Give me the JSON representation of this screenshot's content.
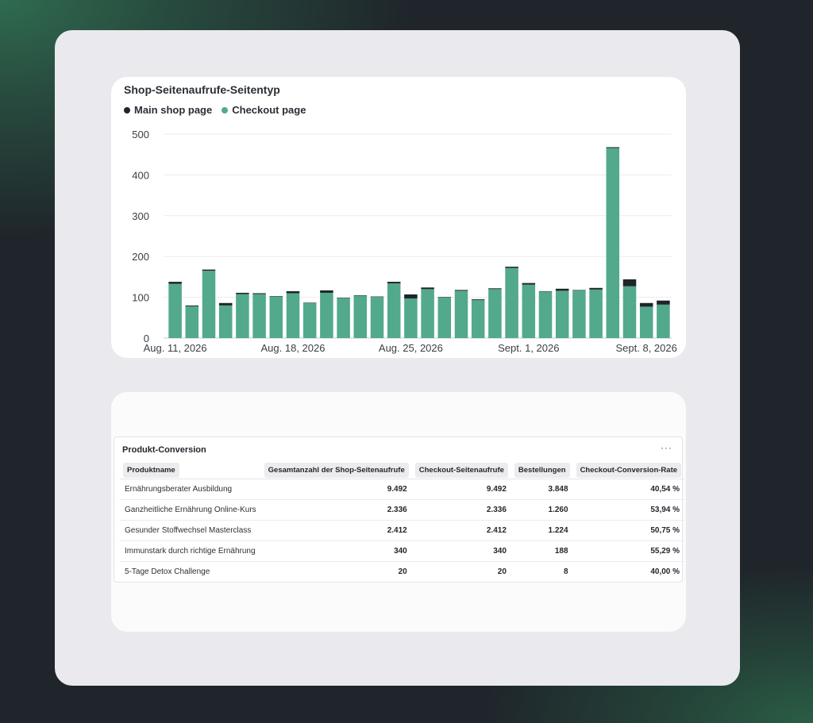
{
  "chart_card": {
    "title": "Shop-Seitenaufrufe-Seitentyp",
    "legend": [
      {
        "label": "Main shop page",
        "color": "#1f252b"
      },
      {
        "label": "Checkout page",
        "color": "#53a98b"
      }
    ]
  },
  "chart_data": {
    "type": "bar",
    "stacked": true,
    "title": "Shop-Seitenaufrufe-Seitentyp",
    "x_tick_labels": [
      "Aug. 11, 2026",
      "Aug. 18, 2026",
      "Aug. 25, 2026",
      "Sept. 1, 2026",
      "Sept. 8, 2026"
    ],
    "x_tick_indices": [
      0,
      7,
      14,
      21,
      28
    ],
    "ylim": [
      0,
      500
    ],
    "yticks": [
      0,
      100,
      200,
      300,
      400,
      500
    ],
    "grid": true,
    "legend_position": "top-left",
    "series": [
      {
        "name": "Checkout page",
        "color": "#53a98b",
        "values": [
          133,
          78,
          165,
          80,
          108,
          108,
          102,
          110,
          86,
          111,
          98,
          104,
          101,
          134,
          97,
          120,
          100,
          116,
          93,
          120,
          172,
          131,
          114,
          116,
          117,
          119,
          466,
          127,
          77,
          82
        ]
      },
      {
        "name": "Main shop page",
        "color": "#1f252b",
        "values": [
          5,
          2,
          3,
          6,
          3,
          2,
          1,
          5,
          1,
          6,
          1,
          1,
          1,
          4,
          10,
          4,
          1,
          2,
          2,
          2,
          3,
          4,
          1,
          5,
          1,
          4,
          2,
          17,
          9,
          10
        ]
      }
    ]
  },
  "table_card": {
    "title": "Produkt-Conversion",
    "more_icon": "···",
    "headers": [
      "Produktname",
      "Gesamtanzahl der Shop-Seitenaufrufe",
      "Checkout-Seitenaufrufe",
      "Bestellungen",
      "Checkout-Conversion-Rate"
    ],
    "rows": [
      [
        "Ernährungsberater Ausbildung",
        "9.492",
        "9.492",
        "3.848",
        "40,54 %"
      ],
      [
        "Ganzheitliche Ernährung Online-Kurs",
        "2.336",
        "2.336",
        "1.260",
        "53,94 %"
      ],
      [
        "Gesunder Stoffwechsel Masterclass",
        "2.412",
        "2.412",
        "1.224",
        "50,75 %"
      ],
      [
        "Immunstark durch richtige Ernährung",
        "340",
        "340",
        "188",
        "55,29 %"
      ],
      [
        "5-Tage Detox Challenge",
        "20",
        "20",
        "8",
        "40,00 %"
      ]
    ]
  }
}
